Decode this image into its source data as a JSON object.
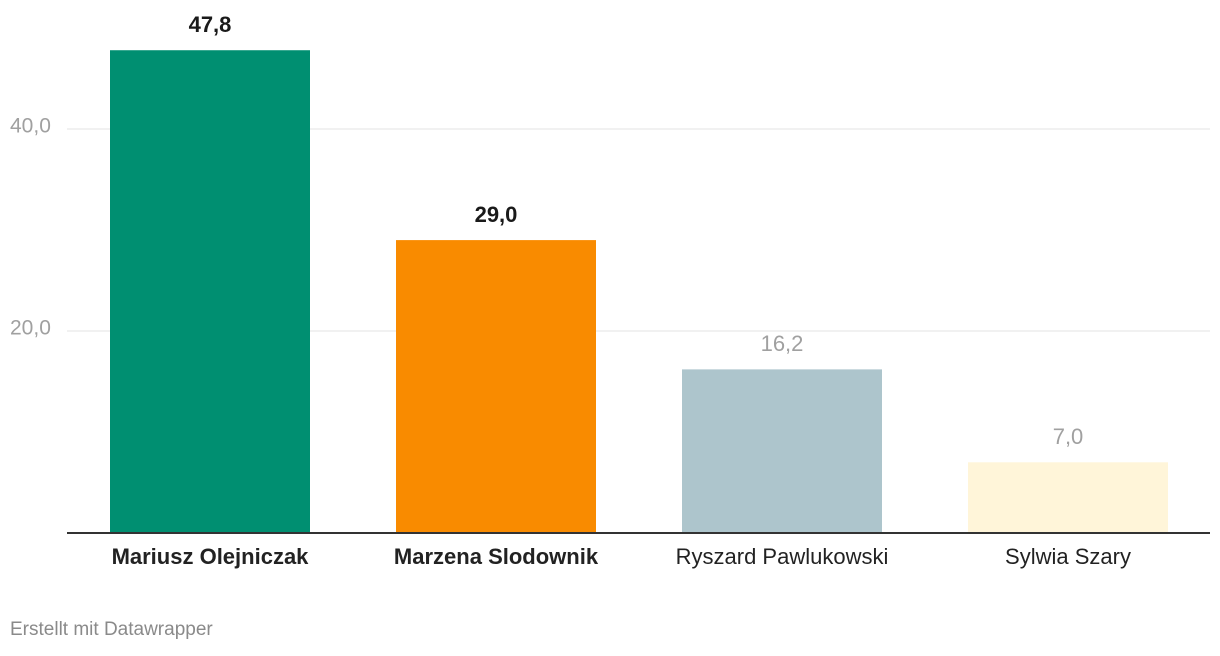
{
  "chart_data": {
    "type": "bar",
    "categories": [
      "Mariusz Olejniczak",
      "Marzena Slodownik",
      "Ryszard Pawlukowski",
      "Sylwia Szary"
    ],
    "values": [
      47.8,
      29.0,
      16.2,
      7.0
    ],
    "value_labels": [
      "47,8",
      "29,0",
      "16,2",
      "7,0"
    ],
    "colors": [
      "#008f71",
      "#f98b00",
      "#adc5cc",
      "#fff5d9"
    ],
    "bold": [
      true,
      true,
      false,
      false
    ],
    "ylim": [
      0,
      50
    ],
    "yticks": [
      {
        "value": 20,
        "label": "20,0"
      },
      {
        "value": 40,
        "label": "40,0"
      }
    ],
    "grid": true,
    "footer": "Erstellt mit Datawrapper"
  }
}
